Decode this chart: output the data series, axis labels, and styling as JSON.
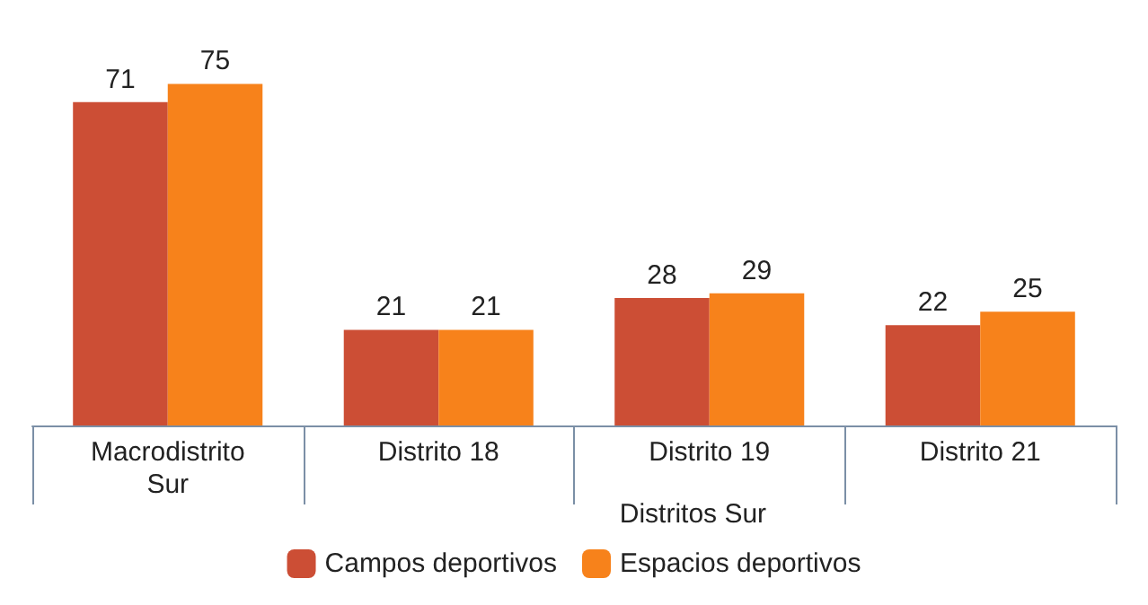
{
  "chart_data": {
    "type": "bar",
    "categories": [
      "Macrodistrito\nSur",
      "Distrito 18",
      "Distrito 19",
      "Distrito 21"
    ],
    "xlabel": "Distritos Sur",
    "series": [
      {
        "name": "Campos deportivos",
        "color": "#cc4e35",
        "values": [
          71,
          21,
          28,
          22
        ]
      },
      {
        "name": "Espacios deportivos",
        "color": "#f7821b",
        "values": [
          75,
          21,
          29,
          25
        ]
      }
    ],
    "data_labels": true,
    "legend": "bottom",
    "grid": false
  }
}
